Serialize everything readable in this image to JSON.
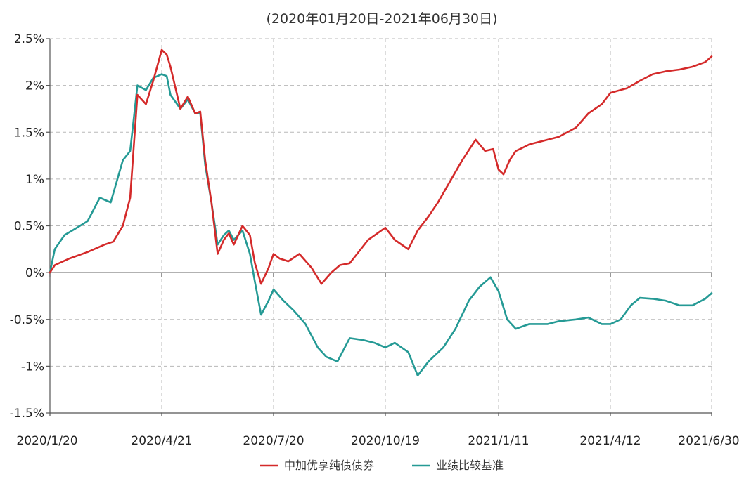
{
  "chart_data": {
    "type": "line",
    "title": "(2020年01月20日-2021年06月30日)",
    "xlabel": "",
    "ylabel": "",
    "x_tick_labels": [
      "2020/1/20",
      "2020/4/21",
      "2020/7/20",
      "2020/10/19",
      "2021/1/11",
      "2021/4/12",
      "2021/6/30"
    ],
    "y_tick_labels": [
      "2.5%",
      "2%",
      "1.5%",
      "1%",
      "0.5%",
      "0%",
      "-0.5%",
      "-1%",
      "-1.5%"
    ],
    "y_ticks": [
      2.5,
      2.0,
      1.5,
      1.0,
      0.5,
      0.0,
      -0.5,
      -1.0,
      -1.5
    ],
    "ylim": [
      -1.5,
      2.5
    ],
    "y_unit": "%",
    "grid": true,
    "legend": "bottom",
    "series": [
      {
        "name": "中加优享纯债债券",
        "color": "#d42a2a",
        "x": [
          "2020-01-20",
          "2020-01-24",
          "2020-02-05",
          "2020-02-20",
          "2020-03-05",
          "2020-03-12",
          "2020-03-20",
          "2020-03-26",
          "2020-04-01",
          "2020-04-08",
          "2020-04-14",
          "2020-04-21",
          "2020-04-25",
          "2020-04-28",
          "2020-05-06",
          "2020-05-12",
          "2020-05-18",
          "2020-05-22",
          "2020-05-26",
          "2020-05-31",
          "2020-06-05",
          "2020-06-10",
          "2020-06-14",
          "2020-06-18",
          "2020-06-25",
          "2020-07-01",
          "2020-07-05",
          "2020-07-10",
          "2020-07-16",
          "2020-07-20",
          "2020-07-25",
          "2020-08-01",
          "2020-08-10",
          "2020-08-20",
          "2020-08-28",
          "2020-09-05",
          "2020-09-12",
          "2020-09-20",
          "2020-09-26",
          "2020-10-05",
          "2020-10-19",
          "2020-10-26",
          "2020-11-05",
          "2020-11-12",
          "2020-11-20",
          "2020-11-27",
          "2020-12-05",
          "2020-12-15",
          "2020-12-25",
          "2021-01-01",
          "2021-01-07",
          "2021-01-11",
          "2021-01-15",
          "2021-01-20",
          "2021-01-25",
          "2021-01-30",
          "2021-02-05",
          "2021-02-20",
          "2021-03-01",
          "2021-03-15",
          "2021-03-25",
          "2021-04-05",
          "2021-04-12",
          "2021-04-25",
          "2021-05-05",
          "2021-05-15",
          "2021-05-25",
          "2021-06-05",
          "2021-06-15",
          "2021-06-25",
          "2021-06-30"
        ],
        "values": [
          0.0,
          0.08,
          0.15,
          0.22,
          0.3,
          0.33,
          0.5,
          0.8,
          1.9,
          1.8,
          2.05,
          2.38,
          2.33,
          2.2,
          1.75,
          1.88,
          1.7,
          1.72,
          1.2,
          0.75,
          0.2,
          0.35,
          0.42,
          0.3,
          0.5,
          0.4,
          0.1,
          -0.12,
          0.05,
          0.2,
          0.15,
          0.12,
          0.2,
          0.05,
          -0.12,
          0.0,
          0.08,
          0.1,
          0.2,
          0.35,
          0.48,
          0.35,
          0.25,
          0.45,
          0.6,
          0.75,
          0.95,
          1.2,
          1.42,
          1.3,
          1.32,
          1.1,
          1.05,
          1.2,
          1.3,
          1.33,
          1.37,
          1.42,
          1.45,
          1.55,
          1.7,
          1.8,
          1.92,
          1.97,
          2.05,
          2.12,
          2.15,
          2.17,
          2.2,
          2.25,
          2.31
        ]
      },
      {
        "name": "业绩比较基准",
        "color": "#259a95",
        "x": [
          "2020-01-20",
          "2020-01-24",
          "2020-02-01",
          "2020-02-10",
          "2020-02-20",
          "2020-03-01",
          "2020-03-10",
          "2020-03-20",
          "2020-03-26",
          "2020-04-01",
          "2020-04-08",
          "2020-04-14",
          "2020-04-21",
          "2020-04-25",
          "2020-04-28",
          "2020-05-06",
          "2020-05-12",
          "2020-05-18",
          "2020-05-22",
          "2020-05-26",
          "2020-05-31",
          "2020-06-05",
          "2020-06-10",
          "2020-06-14",
          "2020-06-18",
          "2020-06-25",
          "2020-07-01",
          "2020-07-05",
          "2020-07-10",
          "2020-07-16",
          "2020-07-20",
          "2020-07-28",
          "2020-08-05",
          "2020-08-15",
          "2020-08-25",
          "2020-09-01",
          "2020-09-10",
          "2020-09-20",
          "2020-10-01",
          "2020-10-10",
          "2020-10-19",
          "2020-10-26",
          "2020-11-05",
          "2020-11-12",
          "2020-11-20",
          "2020-12-01",
          "2020-12-10",
          "2020-12-20",
          "2020-12-28",
          "2021-01-05",
          "2021-01-11",
          "2021-01-18",
          "2021-01-25",
          "2021-02-05",
          "2021-02-20",
          "2021-03-01",
          "2021-03-15",
          "2021-03-25",
          "2021-04-05",
          "2021-04-12",
          "2021-04-20",
          "2021-04-28",
          "2021-05-05",
          "2021-05-15",
          "2021-05-25",
          "2021-06-05",
          "2021-06-15",
          "2021-06-25",
          "2021-06-30"
        ],
        "values": [
          0.0,
          0.25,
          0.4,
          0.47,
          0.55,
          0.8,
          0.75,
          1.2,
          1.3,
          2.0,
          1.95,
          2.08,
          2.12,
          2.1,
          1.9,
          1.75,
          1.85,
          1.7,
          1.7,
          1.15,
          0.75,
          0.3,
          0.4,
          0.45,
          0.35,
          0.45,
          0.2,
          -0.1,
          -0.45,
          -0.3,
          -0.18,
          -0.3,
          -0.4,
          -0.55,
          -0.8,
          -0.9,
          -0.95,
          -0.7,
          -0.72,
          -0.75,
          -0.8,
          -0.75,
          -0.85,
          -1.1,
          -0.95,
          -0.8,
          -0.6,
          -0.3,
          -0.15,
          -0.05,
          -0.2,
          -0.5,
          -0.6,
          -0.55,
          -0.55,
          -0.52,
          -0.5,
          -0.48,
          -0.55,
          -0.55,
          -0.5,
          -0.35,
          -0.27,
          -0.28,
          -0.3,
          -0.35,
          -0.35,
          -0.28,
          -0.22
        ]
      }
    ]
  }
}
